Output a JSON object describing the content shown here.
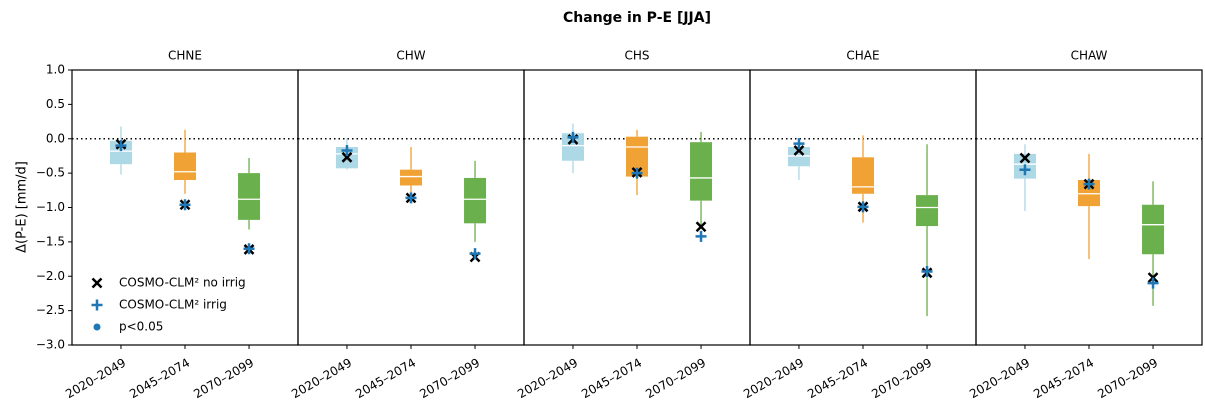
{
  "title": "Change in P-E [JJA]",
  "y_axis": {
    "label": "Δ(P-E) [mm/d]",
    "lim": [
      -3,
      1
    ],
    "ticks": [
      {
        "value": 1,
        "label": "1.0"
      },
      {
        "value": 0.5,
        "label": "0.5"
      },
      {
        "value": 0,
        "label": "0.0"
      },
      {
        "value": -0.5,
        "label": "−0.5"
      },
      {
        "value": -1,
        "label": "−1.0"
      },
      {
        "value": -1.5,
        "label": "−1.5"
      },
      {
        "value": -2,
        "label": "−2.0"
      },
      {
        "value": -2.5,
        "label": "−2.5"
      },
      {
        "value": -3,
        "label": "−3.0"
      }
    ],
    "reference_line": 0
  },
  "legend": [
    {
      "label": "COSMO-CLM² no irrig",
      "marker": "x",
      "color": "#000000"
    },
    {
      "label": "COSMO-CLM² irrig",
      "marker": "+",
      "color": "#1f77b4"
    },
    {
      "label": "p<0.05",
      "marker": "o",
      "color": "#1f77b4"
    }
  ],
  "chart_data": [
    {
      "type": "box",
      "title": "CHNE",
      "categories": [
        "2020–2049",
        "2045–2074",
        "2070–2099"
      ],
      "colors": [
        "#add8e6",
        "#f0a234",
        "#6ab04c"
      ],
      "boxes": [
        {
          "min": -0.52,
          "q1": -0.37,
          "median": -0.18,
          "q3": -0.03,
          "max": 0.18
        },
        {
          "min": -0.8,
          "q1": -0.6,
          "median": -0.48,
          "q3": -0.2,
          "max": 0.13
        },
        {
          "min": -1.32,
          "q1": -1.18,
          "median": -0.88,
          "q3": -0.5,
          "max": -0.28
        }
      ],
      "series": [
        {
          "values": [
            -0.08,
            -0.96,
            -1.61
          ]
        },
        {
          "values": [
            -0.1,
            -0.96,
            -1.6
          ]
        }
      ]
    },
    {
      "type": "box",
      "title": "CHW",
      "categories": [
        "2020–2049",
        "2045–2074",
        "2070–2099"
      ],
      "colors": [
        "#add8e6",
        "#f0a234",
        "#6ab04c"
      ],
      "boxes": [
        {
          "min": -0.45,
          "q1": -0.43,
          "median": -0.22,
          "q3": -0.12,
          "max": 0.0
        },
        {
          "min": -0.78,
          "q1": -0.68,
          "median": -0.55,
          "q3": -0.45,
          "max": -0.12
        },
        {
          "min": -1.5,
          "q1": -1.23,
          "median": -0.88,
          "q3": -0.57,
          "max": -0.32
        }
      ],
      "series": [
        {
          "values": [
            -0.27,
            -0.86,
            -1.72
          ]
        },
        {
          "values": [
            -0.17,
            -0.86,
            -1.67
          ]
        }
      ]
    },
    {
      "type": "box",
      "title": "CHS",
      "categories": [
        "2020–2049",
        "2045–2074",
        "2070–2099"
      ],
      "colors": [
        "#add8e6",
        "#f0a234",
        "#6ab04c"
      ],
      "boxes": [
        {
          "min": -0.5,
          "q1": -0.32,
          "median": -0.1,
          "q3": 0.08,
          "max": 0.22
        },
        {
          "min": -0.82,
          "q1": -0.55,
          "median": -0.12,
          "q3": 0.03,
          "max": 0.13
        },
        {
          "min": -1.3,
          "q1": -0.9,
          "median": -0.57,
          "q3": -0.05,
          "max": 0.1
        }
      ],
      "series": [
        {
          "values": [
            -0.01,
            -0.49,
            -1.28
          ]
        },
        {
          "values": [
            0.02,
            -0.5,
            -1.42
          ]
        }
      ]
    },
    {
      "type": "box",
      "title": "CHAE",
      "categories": [
        "2020–2049",
        "2045–2074",
        "2070–2099"
      ],
      "colors": [
        "#add8e6",
        "#f0a234",
        "#6ab04c"
      ],
      "boxes": [
        {
          "min": -0.6,
          "q1": -0.4,
          "median": -0.25,
          "q3": -0.12,
          "max": 0.0
        },
        {
          "min": -1.22,
          "q1": -0.8,
          "median": -0.7,
          "q3": -0.27,
          "max": 0.05
        },
        {
          "min": -2.58,
          "q1": -1.27,
          "median": -1.0,
          "q3": -0.82,
          "max": -0.08
        }
      ],
      "series": [
        {
          "values": [
            -0.17,
            -0.99,
            -1.95
          ]
        },
        {
          "values": [
            -0.07,
            -0.99,
            -1.93
          ]
        }
      ]
    },
    {
      "type": "box",
      "title": "CHAW",
      "categories": [
        "2020–2049",
        "2045–2074",
        "2070–2099"
      ],
      "colors": [
        "#add8e6",
        "#f0a234",
        "#6ab04c"
      ],
      "boxes": [
        {
          "min": -1.05,
          "q1": -0.58,
          "median": -0.37,
          "q3": -0.22,
          "max": -0.08
        },
        {
          "min": -1.75,
          "q1": -0.98,
          "median": -0.8,
          "q3": -0.6,
          "max": -0.22
        },
        {
          "min": -2.43,
          "q1": -1.68,
          "median": -1.25,
          "q3": -0.96,
          "max": -0.62
        }
      ],
      "series": [
        {
          "values": [
            -0.28,
            -0.66,
            -2.02
          ]
        },
        {
          "values": [
            -0.45,
            -0.66,
            -2.1
          ]
        }
      ]
    }
  ]
}
